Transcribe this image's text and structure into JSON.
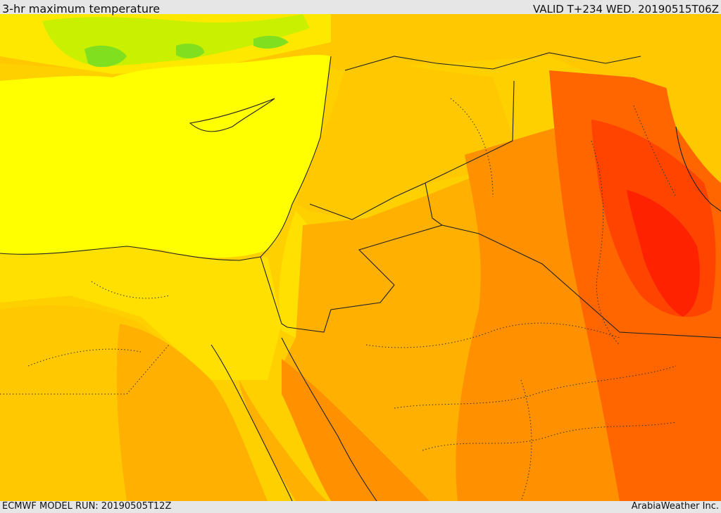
{
  "header": {
    "title": "3-hr maximum temperature",
    "valid": "VALID T+234 WED. 20190515T06Z"
  },
  "footer": {
    "model_run": "ECMWF MODEL RUN: 20190505T12Z",
    "credit": "ArabiaWeather Inc."
  },
  "map": {
    "variable": "3-hr maximum temperature",
    "palette": {
      "green_light": "#c8f000",
      "green": "#80e020",
      "yellow": "#ffff00",
      "yellow_orange": "#ffe000",
      "gold": "#ffc800",
      "orange_light": "#ffb000",
      "orange": "#ff9000",
      "orange_deep": "#ff6600",
      "red_orange": "#ff4400",
      "red": "#ff2200",
      "border_line": "#222222"
    }
  }
}
